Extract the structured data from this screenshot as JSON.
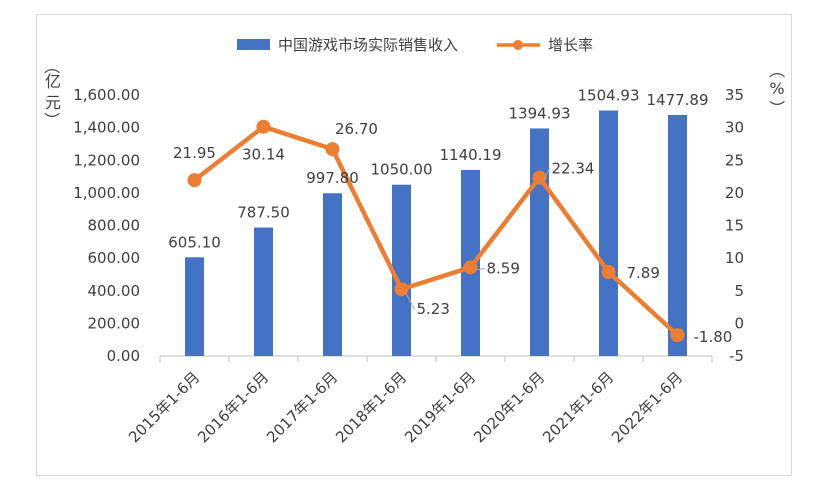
{
  "chart_data": {
    "type": "bar",
    "categories": [
      "2015年1-6月",
      "2016年1-6月",
      "2017年1-6月",
      "2018年1-6月",
      "2019年1-6月",
      "2020年1-6月",
      "2021年1-6月",
      "2022年1-6月"
    ],
    "series": [
      {
        "name": "中国游戏市场实际销售收入",
        "type": "bar",
        "axis": "left",
        "values": [
          605.1,
          787.5,
          997.8,
          1050.0,
          1140.19,
          1394.93,
          1504.93,
          1477.89
        ],
        "labels": [
          "605.10",
          "787.50",
          "997.80",
          "1050.00",
          "1140.19",
          "1394.93",
          "1504.93",
          "1477.89"
        ],
        "color": "#4472C4"
      },
      {
        "name": "增长率",
        "type": "line",
        "axis": "right",
        "values": [
          21.95,
          30.14,
          26.7,
          5.23,
          8.59,
          22.34,
          7.89,
          -1.8
        ],
        "labels": [
          "21.95",
          "30.14",
          "26.70",
          "5.23",
          "8.59",
          "22.34",
          "7.89",
          "-1.80"
        ],
        "color": "#ED7D31"
      }
    ],
    "y_left": {
      "label_chars": [
        "（",
        "亿",
        "元",
        "）"
      ],
      "ylim": [
        0,
        1600
      ],
      "ticks": [
        "0.00",
        "200.00",
        "400.00",
        "600.00",
        "800.00",
        "1,000.00",
        "1,200.00",
        "1,400.00",
        "1,600.00"
      ]
    },
    "y_right": {
      "label_chars": [
        "（",
        "%",
        "）"
      ],
      "ylim": [
        -5,
        35
      ],
      "ticks": [
        "-5",
        "0",
        "5",
        "10",
        "15",
        "20",
        "25",
        "30",
        "35"
      ]
    },
    "legend_position": "top",
    "grid": false
  }
}
